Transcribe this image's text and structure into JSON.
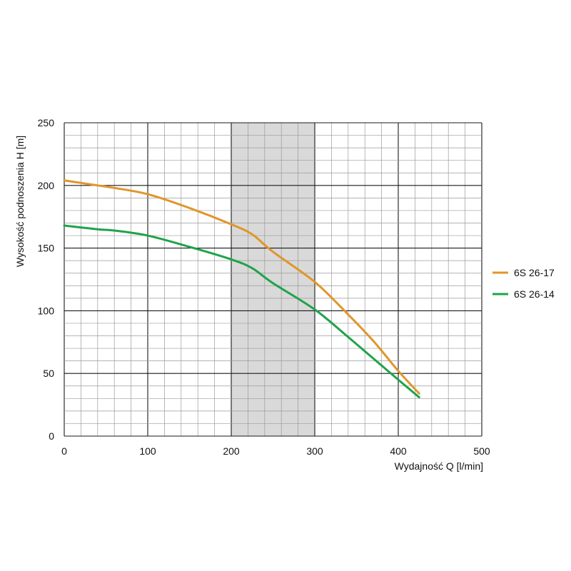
{
  "chart_data": {
    "type": "line",
    "title": "",
    "xlabel": "Wydajność Q [l/min]",
    "ylabel": "Wysokość podnoszenia H [m]",
    "xlim": [
      0,
      500
    ],
    "ylim": [
      0,
      250
    ],
    "x_ticks": [
      "0",
      "100",
      "200",
      "300",
      "400",
      "500"
    ],
    "y_ticks": [
      "0",
      "50",
      "100",
      "150",
      "200",
      "250"
    ],
    "grid": true,
    "highlight_band": {
      "x_from": 200,
      "x_to": 300,
      "color": "#d9d9d9"
    },
    "legend_position": "right",
    "series": [
      {
        "name": "6S 26-17",
        "color": "#e0962a",
        "x": [
          0,
          40,
          60,
          100,
          150,
          200,
          225,
          250,
          300,
          340,
          370,
          400,
          425
        ],
        "y": [
          204,
          200,
          198,
          193,
          182,
          169,
          161,
          147,
          123,
          97,
          76,
          52,
          34
        ]
      },
      {
        "name": "6S 26-14",
        "color": "#1fa34a",
        "x": [
          0,
          40,
          60,
          100,
          150,
          200,
          225,
          250,
          300,
          340,
          370,
          400,
          425
        ],
        "y": [
          168,
          165,
          164,
          160,
          151,
          141,
          134,
          122,
          101,
          79,
          62,
          45,
          31
        ]
      }
    ]
  }
}
